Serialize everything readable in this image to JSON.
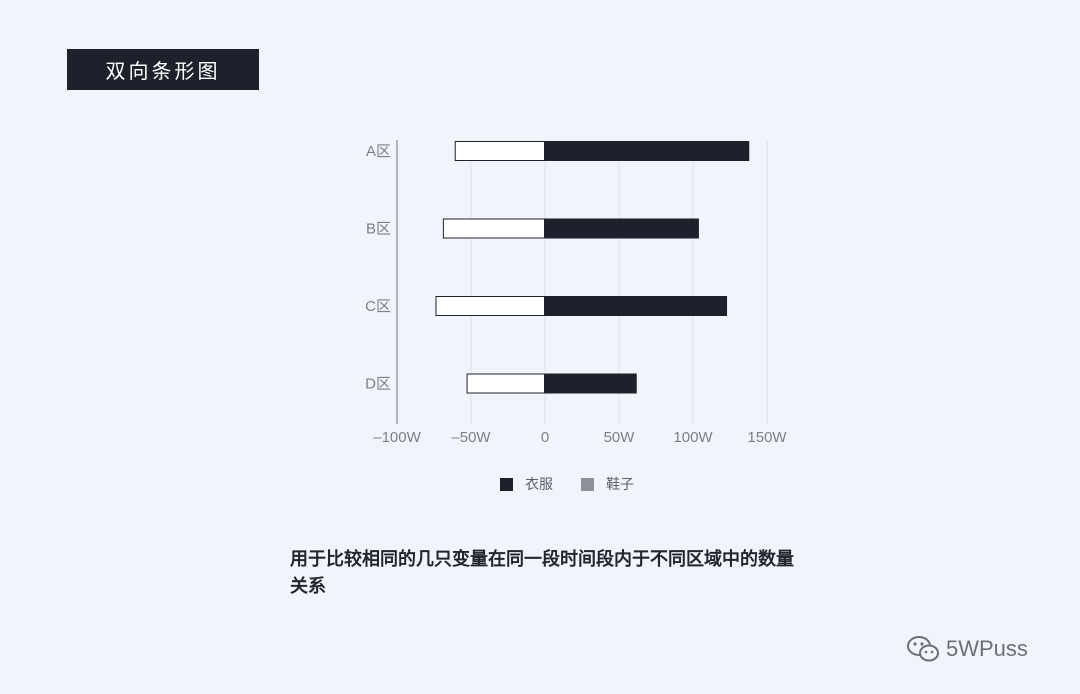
{
  "header": {
    "title": "双向条形图"
  },
  "chart_data": {
    "type": "bar",
    "orientation": "horizontal",
    "diverging": true,
    "categories": [
      "A区",
      "B区",
      "C区",
      "D区"
    ],
    "series": [
      {
        "name": "衣服",
        "values": [
          138,
          104,
          123,
          62
        ],
        "color": "#1d212c",
        "fill": "solid"
      },
      {
        "name": "鞋子",
        "values": [
          -61,
          -69,
          -74,
          -53
        ],
        "color": "#ffffff",
        "stroke": "#1d212c",
        "fill": "outline"
      }
    ],
    "xlim": [
      -100,
      150
    ],
    "xticks": [
      -100,
      -50,
      0,
      50,
      100,
      150
    ],
    "xtick_labels": [
      "–100W",
      "–50W",
      "0",
      "50W",
      "100W",
      "150W"
    ],
    "title": "",
    "xlabel": "",
    "ylabel": "",
    "grid": "vertical",
    "legend_position": "bottom-center"
  },
  "legend": {
    "items": [
      {
        "label": "衣服",
        "color": "#1d212c"
      },
      {
        "label": "鞋子",
        "color": "#8c9098"
      }
    ]
  },
  "description": {
    "text": "用于比较相同的几只变量在同一段时间段内于不同区域中的数量关系"
  },
  "watermark": {
    "text": "5WPuss",
    "icon": "wechat-icon"
  }
}
